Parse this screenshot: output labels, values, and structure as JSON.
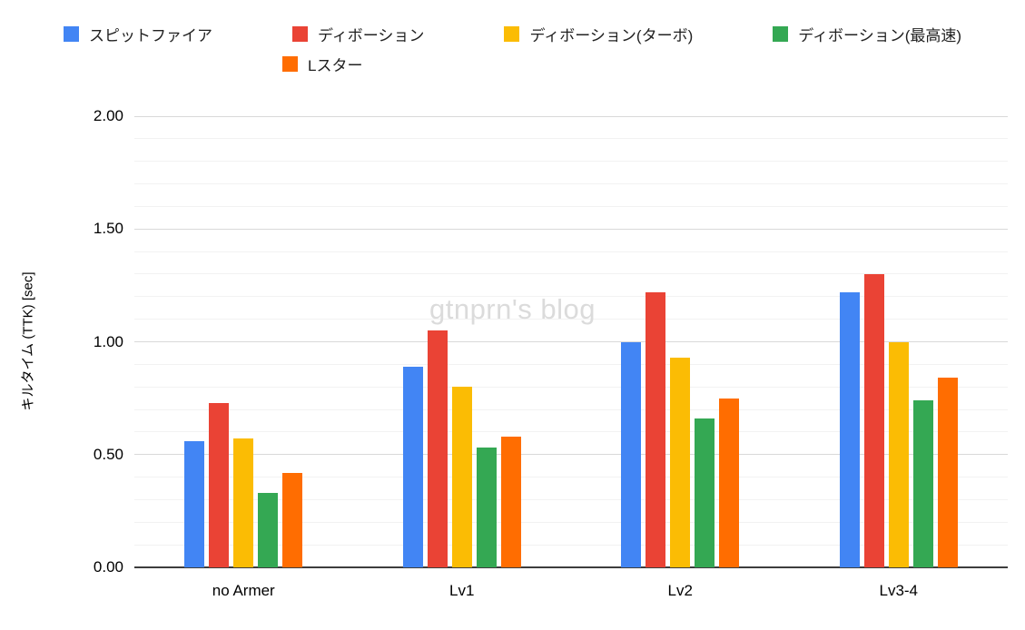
{
  "chart_data": {
    "type": "bar",
    "title": "",
    "xlabel": "",
    "ylabel": "キルタイム (TTK) [sec]",
    "categories": [
      "no Armer",
      "Lv1",
      "Lv2",
      "Lv3-4"
    ],
    "series": [
      {
        "name": "スピットファイア",
        "color": "#4285F4",
        "values": [
          0.56,
          0.89,
          1.0,
          1.22
        ]
      },
      {
        "name": "ディボーション",
        "color": "#EA4335",
        "values": [
          0.73,
          1.05,
          1.22,
          1.3
        ]
      },
      {
        "name": "ディボーション(ターボ)",
        "color": "#FBBC04",
        "values": [
          0.57,
          0.8,
          0.93,
          1.0
        ]
      },
      {
        "name": "ディボーション(最高速)",
        "color": "#34A853",
        "values": [
          0.33,
          0.53,
          0.66,
          0.74
        ]
      },
      {
        "name": "Lスター",
        "color": "#FF6D01",
        "values": [
          0.42,
          0.58,
          0.75,
          0.84
        ]
      }
    ],
    "ylim": [
      0,
      2.0
    ],
    "yticks": [
      0,
      0.5,
      1.0,
      1.5,
      2.0
    ],
    "ytick_labels": [
      "0.00",
      "0.50",
      "1.00",
      "1.50",
      "2.00"
    ],
    "minor_tick_step": 0.1,
    "grid": true,
    "legend_position": "top",
    "watermark": "gtnprn's blog"
  }
}
